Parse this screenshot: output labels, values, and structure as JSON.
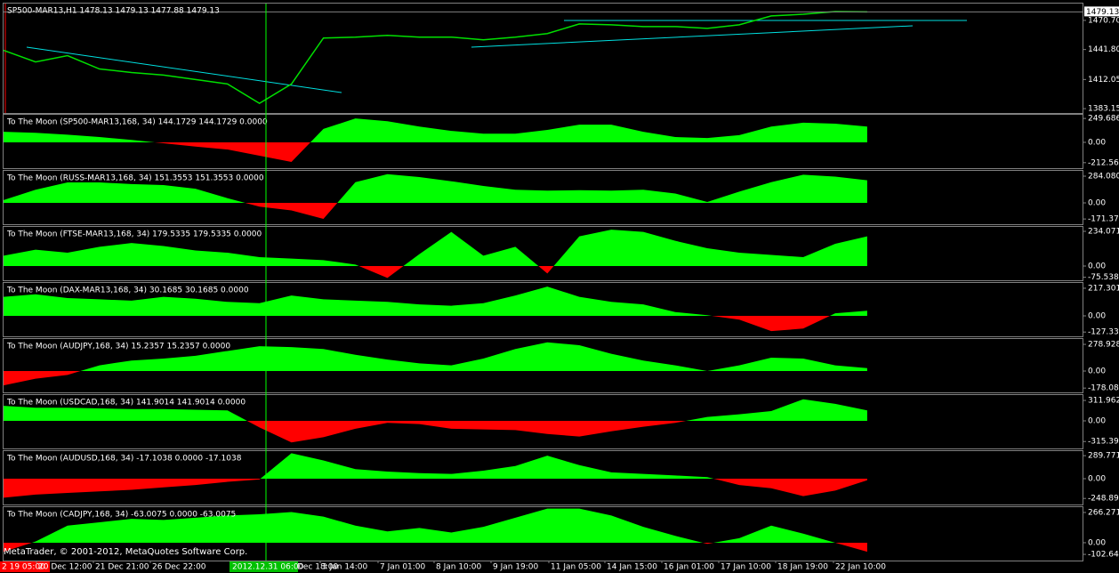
{
  "chart_data": [
    {
      "type": "line",
      "title": "SP500-MAR13,H1  1478.13 1479.13 1477.88 1479.13",
      "color": "#00e000",
      "values": [
        1441.0,
        1429.5,
        1435.7,
        1422.5,
        1419.0,
        1416.4,
        1412.0,
        1407.6,
        1388.4,
        1407.6,
        1453.2,
        1454.1,
        1455.8,
        1454.1,
        1454.1,
        1451.4,
        1454.1,
        1457.6,
        1467.2,
        1466.3,
        1464.6,
        1464.6,
        1462.8,
        1466.3,
        1475.1,
        1476.8,
        1479.5,
        1479.1
      ],
      "last_price": 1479.13,
      "ylim": [
        1378.8,
        1487.4
      ],
      "yticks": [
        {
          "value": 1470.7,
          "label": "1470.70"
        },
        {
          "value": 1441.8,
          "label": "1441.80"
        },
        1412.05,
        1383.15
      ]
    },
    {
      "type": "area",
      "title": "To The Moon (SP500-MAR13,168, 34) 144.1729 144.1729 0.0000",
      "positive_color": "#00ff00",
      "negative_color": "#ff0000",
      "values": [
        110,
        100,
        80,
        55,
        25,
        -10,
        -45,
        -75,
        -140,
        -205,
        140,
        250,
        220,
        165,
        120,
        90,
        90,
        130,
        185,
        185,
        110,
        55,
        45,
        75,
        165,
        205,
        195,
        165
      ],
      "ylim": [
        -270,
        288
      ],
      "yticks": [
        249.6868,
        {
          "value": 0,
          "label": "0.00"
        },
        -212.565
      ]
    },
    {
      "type": "area",
      "title": "To The Moon (RUSS-MAR13,168, 34) 151.3553 151.3553 0.0000",
      "positive_color": "#00ff00",
      "negative_color": "#ff0000",
      "values": [
        30,
        140,
        218,
        218,
        200,
        190,
        150,
        50,
        -40,
        -80,
        -170,
        220,
        305,
        275,
        230,
        180,
        140,
        130,
        135,
        130,
        140,
        100,
        10,
        120,
        220,
        300,
        280,
        240
      ],
      "ylim": [
        -227,
        341
      ],
      "yticks": [
        284.0808,
        {
          "value": 0,
          "label": "0.00"
        },
        -171.373
      ]
    },
    {
      "type": "area",
      "title": "To The Moon (FTSE-MAR13,168, 34) 179.5335 179.5335 0.0000",
      "positive_color": "#00ff00",
      "negative_color": "#ff0000",
      "values": [
        70,
        110,
        90,
        130,
        155,
        135,
        105,
        90,
        60,
        50,
        40,
        10,
        -80,
        80,
        230,
        70,
        130,
        -50,
        200,
        245,
        230,
        170,
        120,
        90,
        75,
        60,
        150,
        200
      ],
      "ylim": [
        -96,
        264
      ],
      "yticks": [
        234.0714,
        {
          "value": 0,
          "label": "0.00"
        },
        -75.5389
      ]
    },
    {
      "type": "area",
      "title": "To The Moon (DAX-MAR13,168, 34) 30.1685 30.1685 0.0000",
      "positive_color": "#00ff00",
      "negative_color": "#ff0000",
      "values": [
        150,
        170,
        140,
        130,
        120,
        150,
        135,
        110,
        100,
        160,
        130,
        120,
        110,
        90,
        80,
        100,
        160,
        230,
        150,
        110,
        90,
        30,
        5,
        -30,
        -120,
        -100,
        20,
        40
      ],
      "ylim": [
        -161,
        259
      ],
      "yticks": [
        217.3013,
        {
          "value": 0,
          "label": "0.00"
        },
        -127.335
      ]
    },
    {
      "type": "area",
      "title": "To The Moon (AUDJPY,168, 34) 15.2357 15.2357 0.0000",
      "positive_color": "#00ff00",
      "negative_color": "#ff0000",
      "values": [
        -150,
        -80,
        -40,
        60,
        110,
        130,
        160,
        210,
        260,
        250,
        230,
        170,
        120,
        80,
        60,
        130,
        230,
        300,
        270,
        180,
        110,
        60,
        0,
        60,
        140,
        130,
        60,
        30
      ],
      "ylim": [
        -223,
        335
      ],
      "yticks": [
        278.9289,
        {
          "value": 0,
          "label": "0.00"
        },
        -178.084
      ]
    },
    {
      "type": "area",
      "title": "To The Moon (USDCAD,168, 34) 141.9014 141.9014 0.0000",
      "positive_color": "#00ff00",
      "negative_color": "#ff0000",
      "values": [
        230,
        200,
        200,
        190,
        180,
        180,
        170,
        160,
        -100,
        -330,
        -250,
        -120,
        -30,
        -50,
        -120,
        -130,
        -140,
        -200,
        -240,
        -160,
        -90,
        -30,
        60,
        100,
        150,
        330,
        260,
        160
      ],
      "ylim": [
        -421,
        394
      ],
      "yticks": [
        311.9625,
        {
          "value": 0,
          "label": "0.00"
        },
        -315.394
      ]
    },
    {
      "type": "area",
      "title": "To The Moon (AUDUSD,168, 34) -17.1038 0.0000 -17.1038",
      "positive_color": "#00ff00",
      "negative_color": "#ff0000",
      "values": [
        -240,
        -200,
        -180,
        -160,
        -140,
        -110,
        -80,
        -40,
        -10,
        320,
        230,
        120,
        90,
        70,
        60,
        100,
        160,
        290,
        170,
        80,
        60,
        40,
        20,
        -80,
        -120,
        -220,
        -150,
        -20
      ],
      "ylim": [
        -325,
        347
      ],
      "yticks": [
        289.771,
        {
          "value": 0,
          "label": "0.00"
        },
        -248.892
      ]
    },
    {
      "type": "area",
      "title": "To The Moon (CADJPY,168, 34) -63.0075 0.0000 -63.0075",
      "positive_color": "#00ff00",
      "negative_color": "#ff0000",
      "values": [
        -80,
        10,
        150,
        180,
        210,
        200,
        220,
        240,
        250,
        270,
        230,
        150,
        100,
        130,
        90,
        140,
        220,
        300,
        300,
        240,
        140,
        60,
        -10,
        40,
        150,
        80,
        0,
        -80
      ],
      "ylim": [
        -157,
        313
      ],
      "yticks": [
        266.2711,
        {
          "value": 0,
          "label": "0.00"
        },
        -102.641
      ]
    }
  ],
  "time_axis": {
    "start": "2 19 05:00",
    "labels": [
      "20 Dec 12:00",
      "21 Dec 21:00",
      "26 Dec 22:00",
      "Dec 18:00",
      "3 Jan 14:00",
      "7 Jan 01:00",
      "8 Jan 10:00",
      "9 Jan 19:00",
      "11 Jan 05:00",
      "14 Jan 15:00",
      "16 Jan 01:00",
      "17 Jan 10:00",
      "18 Jan 19:00",
      "22 Jan 10:00"
    ],
    "cursor": "2012.12.31 06:00"
  },
  "footer": "MetaTrader, © 2001-2012, MetaQuotes Software Corp."
}
